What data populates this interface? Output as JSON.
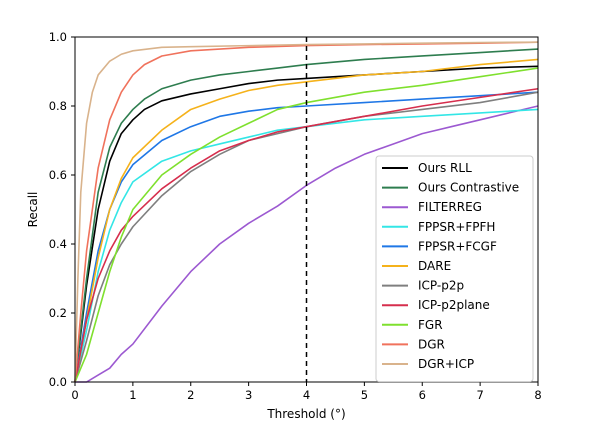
{
  "chart_data": {
    "type": "line",
    "xlabel": "Threshold (°)",
    "ylabel": "Recall",
    "xlim": [
      0,
      8
    ],
    "ylim": [
      0,
      1
    ],
    "xticks": [
      "0",
      "1",
      "2",
      "3",
      "4",
      "5",
      "6",
      "7",
      "8"
    ],
    "yticks": [
      "0.0",
      "0.2",
      "0.4",
      "0.6",
      "0.8",
      "1.0"
    ],
    "grid": false,
    "legend_position": "lower-right",
    "reference_line": {
      "x": 4,
      "style": "dashed",
      "color": "#000000"
    },
    "series": [
      {
        "name": "Ours RLL",
        "color": "#000000",
        "x": [
          0,
          0.2,
          0.4,
          0.6,
          0.8,
          1,
          1.2,
          1.5,
          2,
          2.5,
          3,
          3.5,
          4,
          4.5,
          5,
          6,
          7,
          8
        ],
        "y": [
          0,
          0.28,
          0.5,
          0.64,
          0.72,
          0.76,
          0.79,
          0.815,
          0.835,
          0.85,
          0.865,
          0.875,
          0.88,
          0.885,
          0.89,
          0.9,
          0.91,
          0.915
        ]
      },
      {
        "name": "Ours Contrastive",
        "color": "#2e7d4f",
        "x": [
          0,
          0.2,
          0.4,
          0.6,
          0.8,
          1,
          1.2,
          1.5,
          2,
          2.5,
          3,
          3.5,
          4,
          5,
          6,
          7,
          8
        ],
        "y": [
          0,
          0.3,
          0.55,
          0.68,
          0.75,
          0.79,
          0.82,
          0.85,
          0.875,
          0.89,
          0.9,
          0.91,
          0.92,
          0.935,
          0.945,
          0.955,
          0.965
        ]
      },
      {
        "name": "FILTERREG",
        "color": "#9c59d1",
        "x": [
          0,
          0.2,
          0.4,
          0.6,
          0.8,
          1,
          1.5,
          2,
          2.5,
          3,
          3.5,
          4,
          4.5,
          5,
          5.5,
          6,
          6.5,
          7,
          7.5,
          8
        ],
        "y": [
          0,
          0.0,
          0.02,
          0.04,
          0.08,
          0.11,
          0.22,
          0.32,
          0.4,
          0.46,
          0.51,
          0.57,
          0.62,
          0.66,
          0.69,
          0.72,
          0.74,
          0.76,
          0.78,
          0.8
        ]
      },
      {
        "name": "FPPSR+FPFH",
        "color": "#33e6e6",
        "x": [
          0,
          0.2,
          0.4,
          0.6,
          0.8,
          1,
          1.5,
          2,
          2.5,
          3,
          3.5,
          4,
          5,
          6,
          7,
          8
        ],
        "y": [
          0,
          0.15,
          0.32,
          0.44,
          0.52,
          0.58,
          0.64,
          0.67,
          0.69,
          0.71,
          0.73,
          0.74,
          0.76,
          0.77,
          0.78,
          0.79
        ]
      },
      {
        "name": "FPPSR+FCGF",
        "color": "#1f77e6",
        "x": [
          0,
          0.2,
          0.4,
          0.6,
          0.8,
          1,
          1.5,
          2,
          2.5,
          3,
          3.5,
          4,
          5,
          6,
          7,
          8
        ],
        "y": [
          0,
          0.2,
          0.38,
          0.5,
          0.58,
          0.63,
          0.7,
          0.74,
          0.77,
          0.785,
          0.795,
          0.8,
          0.81,
          0.82,
          0.83,
          0.84
        ]
      },
      {
        "name": "DARE",
        "color": "#f5b21b",
        "x": [
          0,
          0.2,
          0.4,
          0.6,
          0.8,
          1,
          1.5,
          2,
          2.5,
          3,
          3.5,
          4,
          5,
          6,
          7,
          8
        ],
        "y": [
          0,
          0.18,
          0.36,
          0.5,
          0.59,
          0.65,
          0.73,
          0.79,
          0.82,
          0.845,
          0.86,
          0.87,
          0.89,
          0.9,
          0.92,
          0.935
        ]
      },
      {
        "name": "ICP-p2p",
        "color": "#7f7f7f",
        "x": [
          0,
          0.2,
          0.4,
          0.6,
          0.8,
          1,
          1.5,
          2,
          2.5,
          3,
          3.5,
          4,
          5,
          6,
          7,
          8
        ],
        "y": [
          0,
          0.12,
          0.25,
          0.34,
          0.4,
          0.45,
          0.54,
          0.61,
          0.66,
          0.7,
          0.72,
          0.74,
          0.77,
          0.79,
          0.81,
          0.84
        ]
      },
      {
        "name": "ICP-p2plane",
        "color": "#d62e4d",
        "x": [
          0,
          0.2,
          0.4,
          0.6,
          0.8,
          1,
          1.5,
          2,
          2.5,
          3,
          3.5,
          4,
          5,
          6,
          7,
          8
        ],
        "y": [
          0,
          0.18,
          0.3,
          0.38,
          0.44,
          0.48,
          0.56,
          0.62,
          0.67,
          0.7,
          0.725,
          0.74,
          0.77,
          0.8,
          0.825,
          0.85
        ]
      },
      {
        "name": "FGR",
        "color": "#7fe02e",
        "x": [
          0,
          0.2,
          0.4,
          0.6,
          0.8,
          1,
          1.5,
          2,
          2.5,
          3,
          3.5,
          4,
          5,
          6,
          7,
          8
        ],
        "y": [
          0,
          0.08,
          0.2,
          0.32,
          0.42,
          0.5,
          0.6,
          0.66,
          0.71,
          0.75,
          0.79,
          0.81,
          0.84,
          0.86,
          0.885,
          0.91
        ]
      },
      {
        "name": "DGR",
        "color": "#f0725c",
        "x": [
          0,
          0.1,
          0.2,
          0.4,
          0.6,
          0.8,
          1,
          1.2,
          1.5,
          2,
          3,
          4,
          5,
          6,
          7,
          8
        ],
        "y": [
          0,
          0.2,
          0.38,
          0.62,
          0.76,
          0.84,
          0.89,
          0.92,
          0.945,
          0.96,
          0.97,
          0.975,
          0.978,
          0.98,
          0.982,
          0.985
        ]
      },
      {
        "name": "DGR+ICP",
        "color": "#d9b38c",
        "x": [
          0,
          0.05,
          0.1,
          0.2,
          0.3,
          0.4,
          0.6,
          0.8,
          1,
          1.5,
          2,
          3,
          4,
          5,
          6,
          7,
          8
        ],
        "y": [
          0,
          0.3,
          0.55,
          0.75,
          0.84,
          0.89,
          0.93,
          0.95,
          0.96,
          0.97,
          0.972,
          0.975,
          0.978,
          0.98,
          0.982,
          0.984,
          0.985
        ]
      }
    ]
  }
}
